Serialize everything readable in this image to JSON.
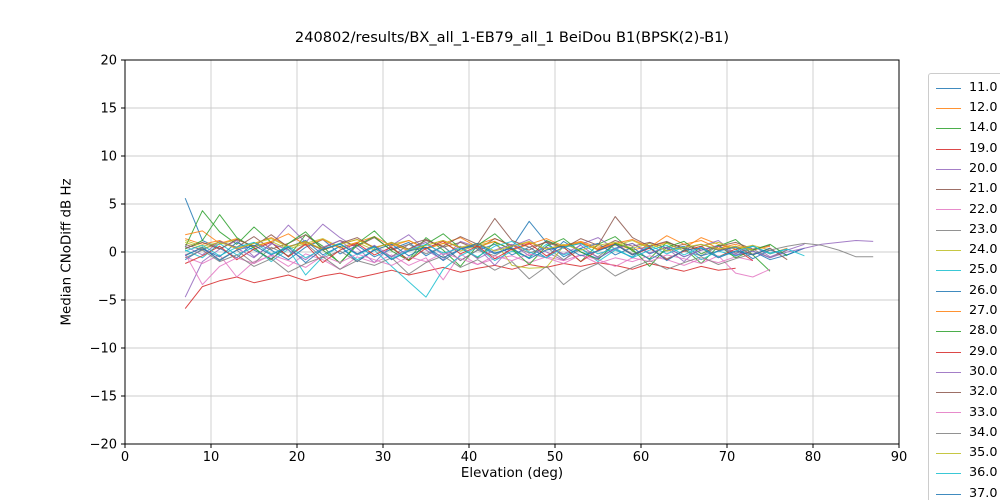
{
  "figure": {
    "background": "#ffffff",
    "grid_color": "#cccccc",
    "spine_color": "#000000",
    "legend_border_color": "#cccccc"
  },
  "chart_data": {
    "type": "line",
    "title": "240802/results/BX_all_1-EB79_all_1 BeiDou B1(BPSK(2)-B1)",
    "xlabel": "Elevation (deg)",
    "ylabel": "Median CNoDiff dB Hz",
    "xlim": [
      0,
      90
    ],
    "ylim": [
      -20,
      20
    ],
    "grid": true,
    "legend_position": "outside-right",
    "x_ticks": [
      {
        "value": 0,
        "label": "0"
      },
      {
        "value": 10,
        "label": "10"
      },
      {
        "value": 20,
        "label": "20"
      },
      {
        "value": 30,
        "label": "30"
      },
      {
        "value": 40,
        "label": "40"
      },
      {
        "value": 50,
        "label": "50"
      },
      {
        "value": 60,
        "label": "60"
      },
      {
        "value": 70,
        "label": "70"
      },
      {
        "value": 80,
        "label": "80"
      },
      {
        "value": 90,
        "label": "90"
      }
    ],
    "y_ticks": [
      {
        "value": 20,
        "label": "20"
      },
      {
        "value": 15,
        "label": "15"
      },
      {
        "value": 10,
        "label": "10"
      },
      {
        "value": 5,
        "label": "5"
      },
      {
        "value": 0,
        "label": "0"
      },
      {
        "value": -5,
        "label": "−5"
      },
      {
        "value": -10,
        "label": "−10"
      },
      {
        "value": -15,
        "label": "−15"
      },
      {
        "value": -20,
        "label": "−20"
      }
    ],
    "x_start": 7,
    "x_step": 2,
    "series": [
      {
        "name": "11.0",
        "color": "#1f77b4",
        "ys": [
          5.6,
          1.2,
          0.4,
          -0.6,
          1.0,
          0.2,
          -0.8,
          0.5,
          1.3,
          -0.2,
          0.7,
          -0.5,
          0.3,
          1.0,
          -0.4,
          0.6,
          -0.9,
          0.2,
          0.8,
          -0.3,
          0.5,
          -0.6,
          1.1,
          0.0,
          -0.7,
          0.4,
          0.9,
          -0.2,
          0.5,
          -0.5,
          0.2,
          0.7,
          -0.4,
          0.1,
          -0.8,
          -0.3,
          0.4
        ]
      },
      {
        "name": "12.0",
        "color": "#ff7f0e",
        "ys": [
          1.4,
          0.8,
          1.2,
          0.3,
          0.9,
          1.5,
          0.6,
          1.0,
          0.2,
          0.8,
          1.3,
          0.5,
          0.9,
          0.1,
          0.7,
          1.2,
          0.4,
          0.8,
          1.4,
          0.6,
          1.0,
          0.3,
          0.7,
          1.1,
          0.5,
          0.9,
          0.2,
          0.6,
          1.0,
          0.4,
          1.5,
          0.8,
          0.3,
          0.6,
          -0.2,
          0.4
        ]
      },
      {
        "name": "14.0",
        "color": "#2ca02c",
        "ys": [
          0.5,
          4.3,
          2.1,
          0.8,
          2.6,
          1.0,
          -0.5,
          1.8,
          0.6,
          -1.2,
          0.9,
          2.2,
          0.4,
          -0.8,
          1.5,
          0.2,
          -1.5,
          0.7,
          1.9,
          0.3,
          -0.6,
          1.2,
          0.5,
          -1.0,
          0.8,
          1.6,
          0.1,
          -0.7,
          1.0,
          0.4,
          -1.2,
          0.6,
          1.3,
          -0.3,
          -2.0
        ]
      },
      {
        "name": "19.0",
        "color": "#d62728",
        "ys": [
          -5.9,
          -3.6,
          -3.0,
          -2.6,
          -3.2,
          -2.8,
          -2.4,
          -3.0,
          -2.5,
          -2.2,
          -2.7,
          -2.3,
          -1.9,
          -2.4,
          -2.0,
          -1.6,
          -2.1,
          -1.7,
          -1.4,
          -1.8,
          -1.3,
          -1.6,
          -1.2,
          -1.5,
          -1.1,
          -1.4,
          -1.8,
          -1.2,
          -1.6,
          -2.0,
          -1.5,
          -1.9,
          -1.7
        ]
      },
      {
        "name": "20.0",
        "color": "#9467bd",
        "ys": [
          -4.7,
          -1.0,
          0.3,
          1.2,
          -0.5,
          0.8,
          2.8,
          1.0,
          2.9,
          1.5,
          0.4,
          -1.1,
          0.7,
          1.8,
          0.2,
          -0.8,
          1.1,
          0.5,
          -1.4,
          0.6,
          1.3,
          0.0,
          -0.9,
          0.8,
          1.5,
          0.3,
          -0.6,
          1.0,
          0.4,
          -1.0,
          0.6,
          1.2,
          -0.2,
          0.7,
          -0.5,
          0.2,
          0.8
        ]
      },
      {
        "name": "21.0",
        "color": "#8c564b",
        "ys": [
          0.8,
          0.2,
          1.1,
          0.5,
          1.6,
          0.3,
          0.9,
          1.8,
          0.4,
          1.2,
          0.6,
          1.5,
          0.2,
          0.8,
          1.3,
          0.5,
          1.0,
          0.3,
          1.4,
          0.7,
          0.2,
          1.1,
          0.5,
          0.9,
          0.3,
          1.2,
          0.6,
          1.0,
          0.4,
          0.8,
          0.2,
          0.6,
          1.0,
          0.3,
          0.7
        ]
      },
      {
        "name": "22.0",
        "color": "#e377c2",
        "ys": [
          -0.5,
          -1.2,
          -0.3,
          -2.6,
          -1.0,
          -0.4,
          -1.5,
          -0.2,
          -0.8,
          -1.8,
          -0.5,
          -1.1,
          -0.3,
          -1.4,
          -0.6,
          -2.9,
          -0.2,
          -1.3,
          -0.7,
          -0.4,
          -1.1,
          -0.5,
          -0.9,
          -0.3,
          -1.2,
          -0.6,
          -1.0,
          -0.4,
          -0.8,
          -1.4,
          -0.7,
          -1.1,
          -0.5,
          -0.9
        ]
      },
      {
        "name": "23.0",
        "color": "#7f7f7f",
        "ys": [
          -0.3,
          0.4,
          -0.8,
          0.2,
          -1.2,
          0.5,
          -0.4,
          0.9,
          -0.6,
          0.1,
          -1.0,
          0.3,
          -0.5,
          0.8,
          -0.2,
          0.6,
          -0.9,
          0.2,
          -0.4,
          0.7,
          -0.1,
          0.5,
          -0.8,
          0.3,
          -0.5,
          0.9,
          -0.2,
          0.4,
          -0.7,
          0.1,
          -0.4,
          0.6,
          -0.1,
          0.3,
          -0.6,
          0.2
        ]
      },
      {
        "name": "24.0",
        "color": "#bcbd22",
        "ys": [
          1.0,
          0.4,
          0.8,
          1.3,
          0.6,
          1.1,
          0.3,
          0.9,
          1.4,
          0.5,
          1.0,
          0.2,
          0.8,
          1.2,
          0.4,
          0.9,
          0.1,
          0.7,
          1.1,
          -1.4,
          -1.7,
          -1.6,
          0.6,
          1.0,
          0.2,
          0.7,
          1.2,
          0.4,
          0.9,
          0.1,
          0.6,
          1.0,
          0.3,
          0.7,
          0.2
        ]
      },
      {
        "name": "25.0",
        "color": "#17becf",
        "ys": [
          0.2,
          -0.6,
          0.9,
          -0.3,
          0.5,
          -1.0,
          0.3,
          -2.4,
          -0.5,
          0.6,
          -0.8,
          0.2,
          -1.5,
          -3.1,
          -4.7,
          -1.8,
          -0.4,
          0.5,
          -0.9,
          0.1,
          -0.6,
          0.8,
          -0.3,
          0.4,
          -1.0,
          0.2,
          -0.5,
          0.7,
          -0.2,
          0.5,
          -0.8,
          0.1,
          -0.4,
          0.6,
          -0.1,
          0.3
        ]
      },
      {
        "name": "26.0",
        "color": "#1f77b4",
        "ys": [
          -0.8,
          0.3,
          -0.5,
          1.0,
          0.2,
          -0.7,
          0.5,
          1.2,
          -0.3,
          0.6,
          -1.0,
          0.2,
          0.8,
          -0.4,
          0.5,
          -0.9,
          0.3,
          0.7,
          -0.2,
          0.5,
          3.2,
          1.0,
          -0.5,
          0.4,
          0.9,
          -0.3,
          0.5,
          -0.8,
          0.2,
          0.6,
          -0.4,
          0.1,
          0.5,
          -0.7,
          0.2,
          -0.3,
          0.4
        ]
      },
      {
        "name": "27.0",
        "color": "#ff7f0e",
        "ys": [
          1.8,
          2.2,
          0.9,
          1.4,
          0.5,
          1.1,
          1.9,
          0.7,
          1.3,
          0.4,
          1.0,
          1.6,
          0.6,
          1.2,
          0.3,
          0.9,
          1.5,
          0.5,
          1.1,
          0.2,
          0.8,
          1.4,
          0.6,
          1.0,
          0.3,
          0.9,
          1.3,
          0.5,
          1.7,
          0.8,
          1.2,
          0.4,
          0.8,
          0.2,
          0.6
        ]
      },
      {
        "name": "28.0",
        "color": "#2ca02c",
        "ys": [
          0.3,
          1.2,
          3.9,
          1.5,
          0.4,
          -0.8,
          0.9,
          2.1,
          0.2,
          -1.1,
          0.7,
          1.6,
          0.1,
          -0.9,
          0.8,
          1.9,
          0.4,
          -0.6,
          1.0,
          0.3,
          -1.3,
          0.6,
          1.4,
          0.0,
          -0.8,
          0.9,
          0.3,
          -1.5,
          0.5,
          1.1,
          -0.2,
          0.7,
          -0.6,
          0.2,
          0.8,
          -0.4
        ]
      },
      {
        "name": "29.0",
        "color": "#d62728",
        "ys": [
          -1.2,
          -0.4,
          0.6,
          -0.8,
          0.3,
          1.0,
          -0.5,
          0.8,
          -1.1,
          0.2,
          0.9,
          -0.3,
          0.5,
          -0.9,
          0.4,
          1.1,
          -0.2,
          0.6,
          -0.7,
          0.3,
          0.9,
          -0.4,
          0.5,
          -1.0,
          0.2,
          0.8,
          -0.3,
          0.4,
          -0.8,
          0.1,
          0.6,
          -0.5,
          0.3,
          -0.9
        ]
      },
      {
        "name": "30.0",
        "color": "#9467bd",
        "ys": [
          0.6,
          -0.3,
          1.1,
          0.4,
          -0.6,
          0.9,
          0.2,
          -0.8,
          0.5,
          1.2,
          -0.2,
          0.7,
          -0.5,
          0.3,
          1.0,
          -0.3,
          0.6,
          -0.7,
          0.2,
          0.8,
          -0.4,
          0.5,
          -0.2,
          0.7,
          -0.6,
          0.3,
          0.9,
          -0.1,
          0.5,
          -0.5,
          0.2,
          0.6,
          -0.3,
          0.1,
          -0.6,
          0.0,
          0.4,
          0.8,
          1.0,
          1.2,
          1.1
        ]
      },
      {
        "name": "32.0",
        "color": "#8c564b",
        "ys": [
          0.4,
          1.0,
          0.3,
          1.3,
          0.6,
          1.8,
          0.5,
          1.1,
          0.2,
          0.9,
          1.5,
          0.4,
          1.0,
          0.3,
          1.2,
          0.6,
          1.6,
          0.8,
          3.5,
          1.2,
          0.5,
          1.0,
          0.4,
          1.4,
          0.7,
          3.7,
          1.5,
          0.6,
          1.1,
          0.3,
          0.8,
          0.2,
          0.6,
          -0.3,
          0.4,
          -0.8
        ]
      },
      {
        "name": "33.0",
        "color": "#e377c2",
        "ys": [
          -0.2,
          -3.4,
          -1.5,
          -0.6,
          -1.2,
          -0.3,
          -0.9,
          -1.6,
          -0.4,
          -1.1,
          -0.2,
          -0.8,
          -1.4,
          -0.5,
          -1.0,
          -0.1,
          -0.7,
          -1.3,
          -0.4,
          -0.9,
          -0.2,
          -0.6,
          -1.2,
          -0.3,
          -0.8,
          -1.5,
          -0.6,
          -1.0,
          -0.3,
          -0.7,
          -1.2,
          -0.4,
          -2.2,
          -2.6,
          -1.8
        ]
      },
      {
        "name": "34.0",
        "color": "#7f7f7f",
        "ys": [
          -0.6,
          0.2,
          -1.0,
          -0.3,
          -1.5,
          -0.7,
          -2.1,
          -1.2,
          -0.5,
          -1.8,
          -0.9,
          -1.4,
          -0.6,
          -2.3,
          -1.1,
          -0.4,
          -1.6,
          -0.8,
          -1.9,
          -1.0,
          -2.8,
          -1.5,
          -3.4,
          -2.0,
          -1.2,
          -2.5,
          -1.6,
          -0.9,
          -1.8,
          -1.1,
          -0.5,
          -1.3,
          -0.7,
          -0.2,
          0.2,
          0.6,
          0.9,
          0.7,
          0.2,
          -0.5,
          -0.5
        ]
      },
      {
        "name": "35.0",
        "color": "#bcbd22",
        "ys": [
          1.2,
          0.6,
          1.0,
          0.4,
          0.9,
          1.4,
          0.5,
          1.1,
          0.3,
          0.8,
          1.3,
          0.4,
          1.0,
          0.2,
          0.7,
          1.2,
          0.5,
          0.9,
          0.1,
          0.6,
          1.1,
          0.3,
          0.8,
          0.2,
          0.7,
          1.0,
          0.4,
          0.9,
          0.1,
          0.5,
          0.8,
          0.3,
          0.6,
          0.2
        ]
      },
      {
        "name": "36.0",
        "color": "#17becf",
        "ys": [
          0.1,
          0.7,
          -0.4,
          0.5,
          1.0,
          -0.2,
          0.6,
          -0.6,
          0.3,
          0.9,
          -0.3,
          0.5,
          -0.7,
          0.2,
          0.8,
          -0.1,
          0.4,
          -0.5,
          0.6,
          1.1,
          0.0,
          -0.6,
          0.5,
          0.9,
          -0.2,
          0.4,
          -0.6,
          0.2,
          0.7,
          -0.3,
          0.5,
          -0.5,
          0.1,
          0.6,
          -0.2,
          0.3,
          -0.4
        ]
      },
      {
        "name": "37.0",
        "color": "#1f77b4",
        "ys": [
          -0.4,
          0.5,
          -0.9,
          0.2,
          0.7,
          -0.3,
          0.5,
          -1.1,
          0.3,
          0.8,
          -0.2,
          0.6,
          -0.8,
          0.1,
          0.5,
          -0.6,
          0.3,
          0.9,
          -0.1,
          0.4,
          -0.7,
          0.2,
          0.6,
          -0.4,
          0.1,
          0.8,
          -0.3,
          0.5,
          -0.9,
          0.2,
          0.4,
          -0.6,
          0.1,
          -0.3,
          0.4
        ]
      }
    ]
  }
}
